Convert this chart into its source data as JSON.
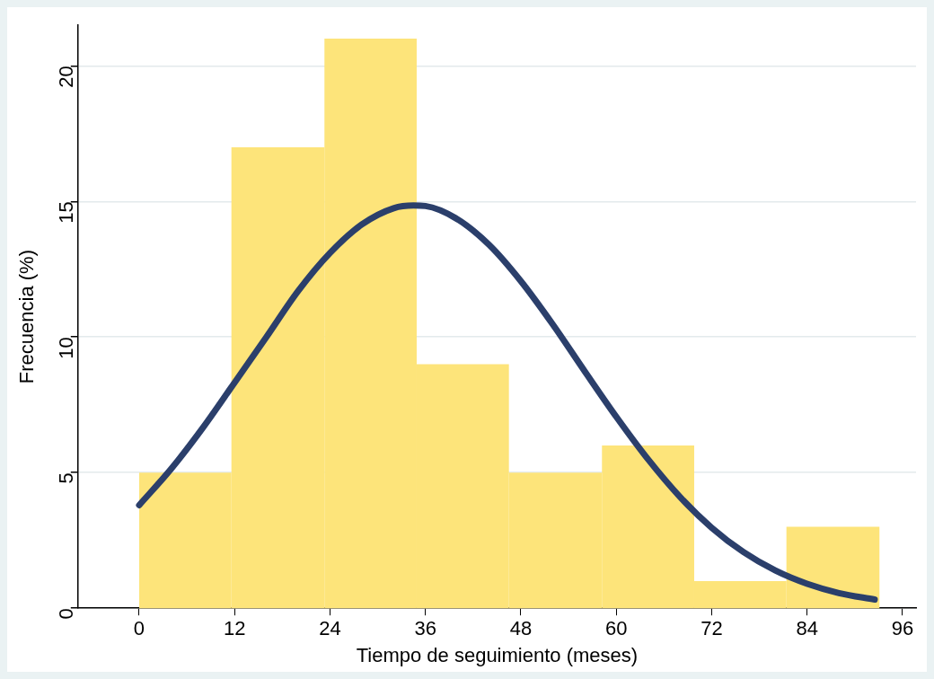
{
  "chart_data": {
    "type": "histogram",
    "xlabel": "Tiempo de seguimiento (meses)",
    "ylabel": "Frecuencia (%)",
    "bins": [
      0,
      11.6,
      23.3,
      34.9,
      46.5,
      58.2,
      69.8,
      81.4,
      93.1
    ],
    "values": [
      5,
      17,
      21,
      9,
      5,
      6,
      1,
      3
    ],
    "color": "#fde47a",
    "series": [
      {
        "type": "line",
        "color": "#2b3f6b",
        "x": [
          0,
          4,
          8,
          12,
          16,
          20,
          24,
          28,
          32,
          34.5,
          36,
          40,
          44,
          48,
          52,
          56,
          60,
          64,
          68,
          72,
          76,
          80,
          84,
          88,
          92.5
        ],
        "values": [
          3.8,
          5.13,
          6.65,
          8.32,
          10,
          11.7,
          13.1,
          14.15,
          14.75,
          14.85,
          14.83,
          14.35,
          13.4,
          12.06,
          10.47,
          8.75,
          7.06,
          5.49,
          4.11,
          2.97,
          2.07,
          1.39,
          0.9,
          0.56,
          0.32
        ]
      }
    ],
    "marker": "none",
    "xlim": [
      -7.7,
      97.7
    ],
    "xticks": [
      0,
      12,
      24,
      36,
      48,
      60,
      72,
      84,
      96
    ],
    "ylim": [
      0,
      21.5
    ],
    "yticks": [
      0,
      5,
      10,
      15,
      20
    ],
    "grid": "y"
  }
}
